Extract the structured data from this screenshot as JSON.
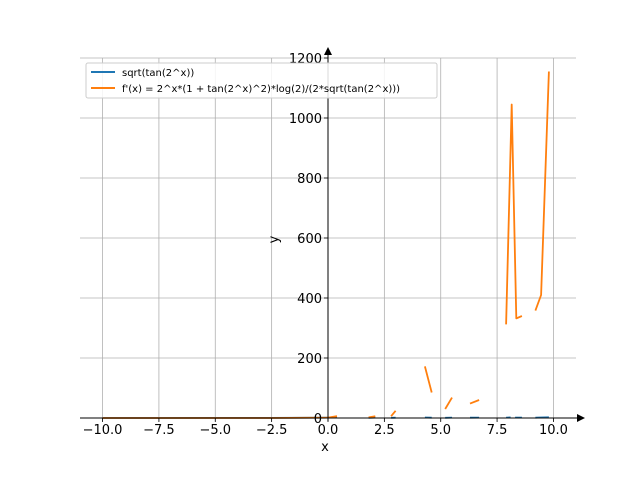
{
  "chart_data": {
    "type": "line",
    "title": "",
    "xlabel": "x",
    "ylabel": "y",
    "xlim": [
      -11.0,
      11.0
    ],
    "ylim": [
      -10,
      1200
    ],
    "grid": true,
    "legend_position": "top-left",
    "x_ticks": [
      -10.0,
      -7.5,
      -5.0,
      -2.5,
      0.0,
      2.5,
      5.0,
      7.5,
      10.0
    ],
    "x_tick_labels": [
      "−10.0",
      "−7.5",
      "−5.0",
      "−2.5",
      "0.0",
      "2.5",
      "5.0",
      "7.5",
      "10.0"
    ],
    "y_ticks": [
      0,
      200,
      400,
      600,
      800,
      1000,
      1200
    ],
    "y_tick_labels": [
      "0",
      "200",
      "400",
      "600",
      "800",
      "1000",
      "1200"
    ],
    "series": [
      {
        "name": "sqrt(tan(2^x))",
        "color": "#1f77b4",
        "segments": [
          [
            [
              -10.0,
              0.03
            ],
            [
              -7.5,
              0.08
            ],
            [
              -5.0,
              0.18
            ],
            [
              -2.5,
              0.42
            ],
            [
              0.0,
              1.25
            ],
            [
              0.4,
              1.5
            ]
          ],
          [
            [
              1.8,
              0.8
            ],
            [
              2.1,
              1.2
            ]
          ],
          [
            [
              2.8,
              0.6
            ],
            [
              3.0,
              1.0
            ]
          ],
          [
            [
              4.3,
              1.8
            ],
            [
              4.6,
              0.9
            ]
          ],
          [
            [
              5.2,
              0.7
            ],
            [
              5.5,
              1.5
            ]
          ],
          [
            [
              6.3,
              0.9
            ],
            [
              6.7,
              1.3
            ]
          ],
          [
            [
              7.9,
              1.5
            ],
            [
              8.1,
              2.0
            ]
          ],
          [
            [
              8.3,
              1.2
            ],
            [
              8.6,
              1.4
            ]
          ],
          [
            [
              9.2,
              1.1
            ],
            [
              9.4,
              1.7
            ],
            [
              9.8,
              2.2
            ]
          ]
        ]
      },
      {
        "name": "f'(x) = 2^x*(1 + tan(2^x)^2)*log(2)/(2*sqrt(tan(2^x)))",
        "color": "#ff7f0e",
        "segments": [
          [
            [
              -10.0,
              0.0
            ],
            [
              -7.5,
              0.0
            ],
            [
              -5.0,
              0.01
            ],
            [
              -2.5,
              0.15
            ],
            [
              0.0,
              1.4
            ],
            [
              0.4,
              6
            ]
          ],
          [
            [
              1.8,
              2
            ],
            [
              2.1,
              6
            ]
          ],
          [
            [
              2.8,
              6
            ],
            [
              3.0,
              24
            ]
          ],
          [
            [
              4.3,
              172
            ],
            [
              4.6,
              85
            ]
          ],
          [
            [
              5.2,
              30
            ],
            [
              5.5,
              68
            ]
          ],
          [
            [
              6.3,
              48
            ],
            [
              6.7,
              60
            ]
          ],
          [
            [
              7.9,
              312
            ],
            [
              8.15,
              1045
            ],
            [
              8.35,
              332
            ],
            [
              8.6,
              340
            ]
          ],
          [
            [
              9.2,
              358
            ],
            [
              9.45,
              410
            ],
            [
              9.8,
              1155
            ]
          ]
        ]
      }
    ]
  }
}
